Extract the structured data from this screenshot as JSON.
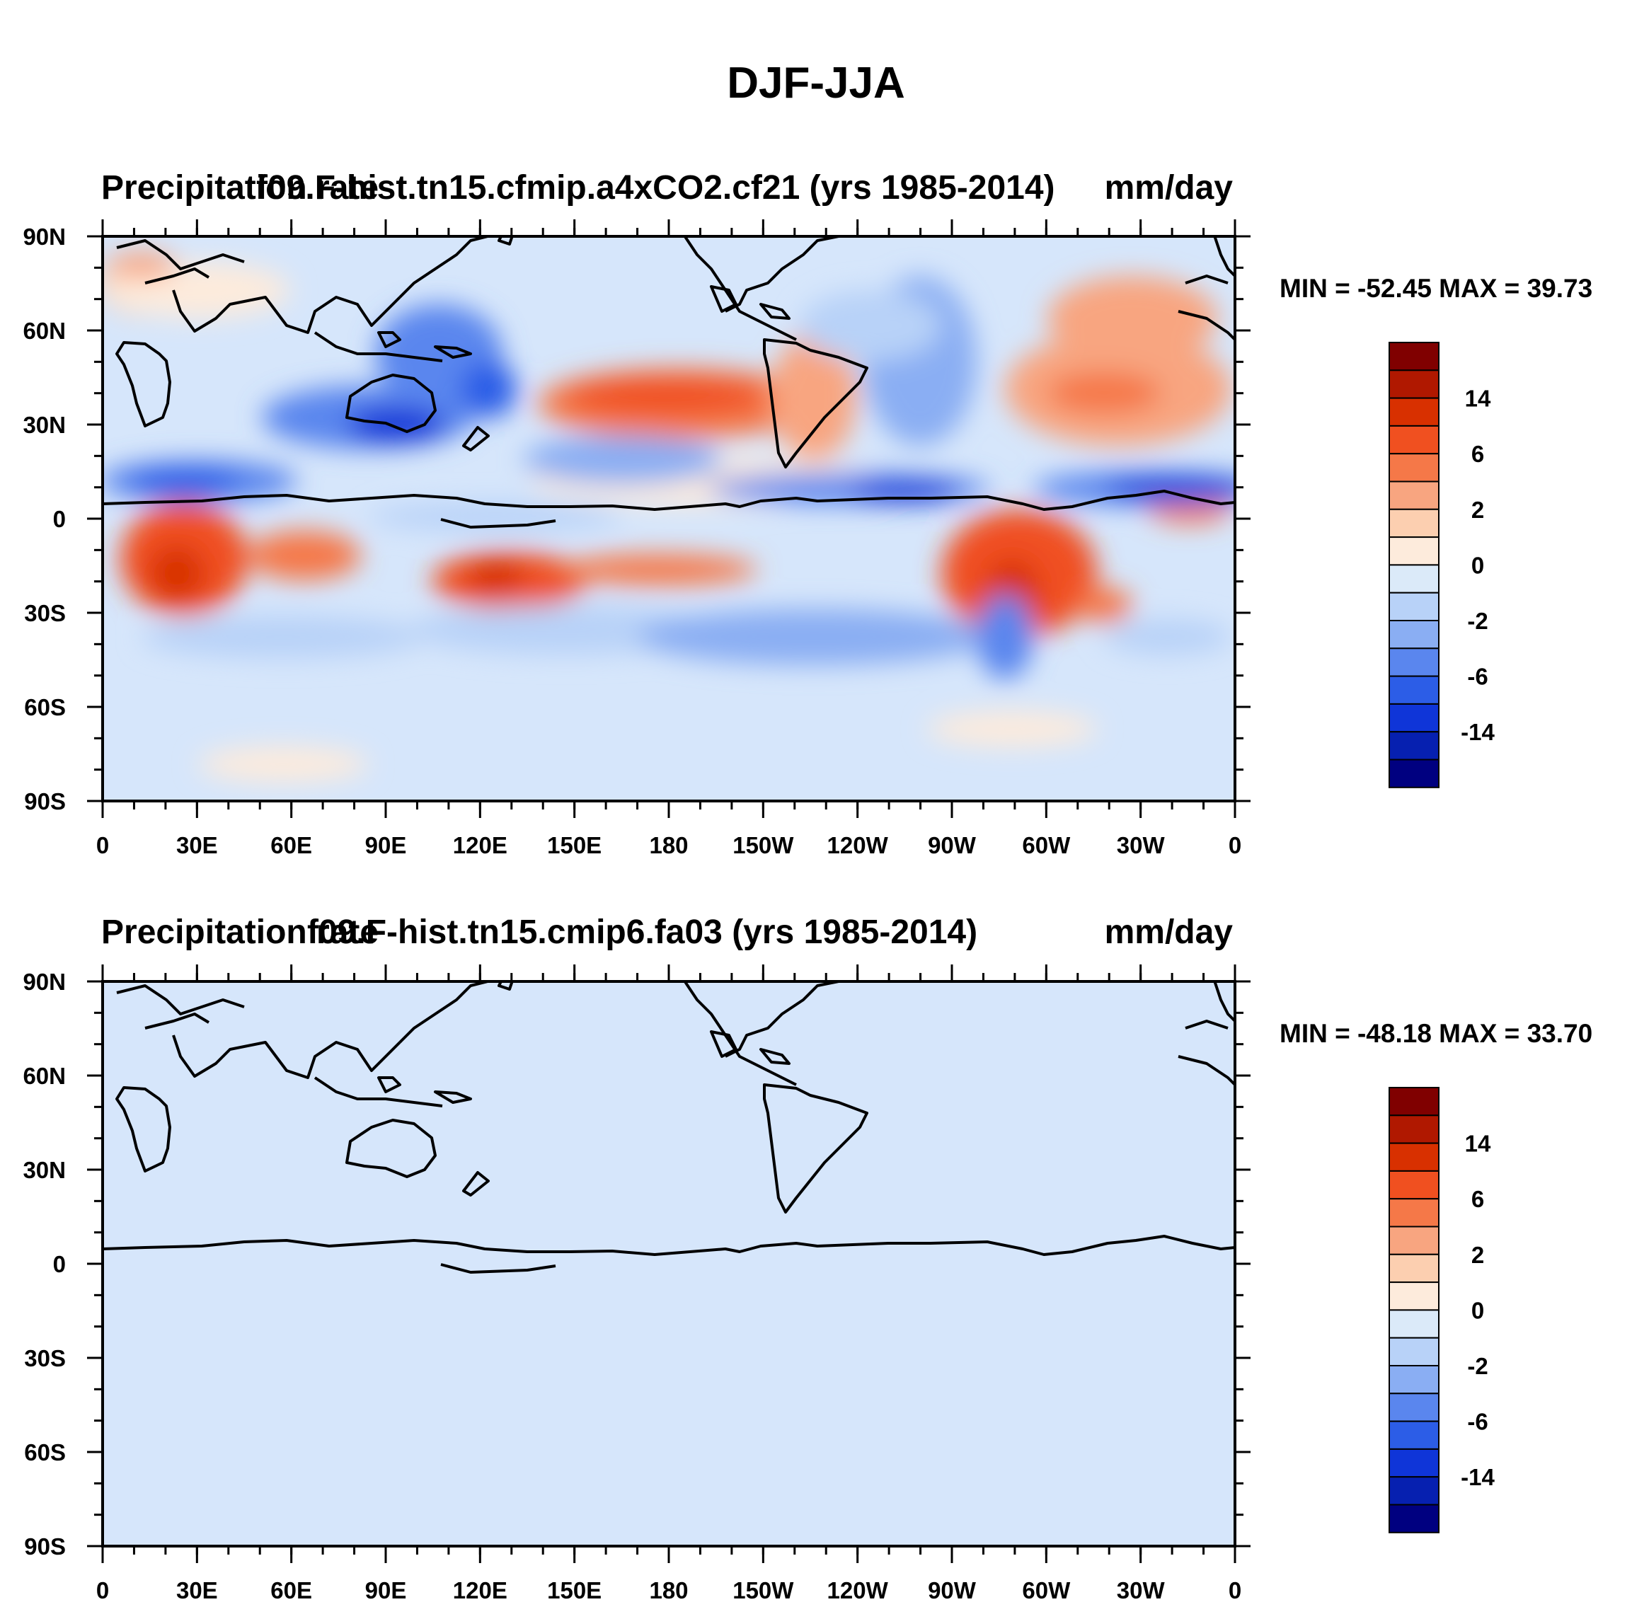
{
  "title": "DJF-JJA",
  "units": "mm/day",
  "x_ticks": [
    "0",
    "30E",
    "60E",
    "90E",
    "120E",
    "150E",
    "180",
    "150W",
    "120W",
    "90W",
    "60W",
    "30W",
    "0"
  ],
  "y_ticks": [
    "90N",
    "60N",
    "30N",
    "0",
    "30S",
    "60S",
    "90S"
  ],
  "colorbar_labels": [
    "14",
    "6",
    "2",
    "0",
    "-2",
    "-6",
    "-14"
  ],
  "colorbar_colors": [
    "#800000",
    "#b01800",
    "#d83000",
    "#f05020",
    "#f57848",
    "#f8a580",
    "#fccfb0",
    "#fdebdc",
    "#dbeaf9",
    "#b8d2f8",
    "#8aaef3",
    "#5a86ee",
    "#2c5de7",
    "#0f35d8",
    "#0620b0",
    "#000080"
  ],
  "panels": [
    {
      "id": "top",
      "left_title": "Precipitation rate",
      "center_title": "f09.F-hist.tn15.cfmip.a4xCO2.cf21 (yrs 1985-2014)",
      "right_title": "mm/day",
      "stats": "MIN = -52.45 MAX =  39.73",
      "min": -52.45,
      "max": 39.73
    },
    {
      "id": "bottom",
      "left_title": "Precipitation rate",
      "center_title": "f09.F-hist.tn15.cmip6.fa03 (yrs 1985-2014)",
      "right_title": "mm/day",
      "stats": "MIN = -48.18 MAX =  33.70",
      "min": -48.18,
      "max": 33.7
    }
  ]
}
